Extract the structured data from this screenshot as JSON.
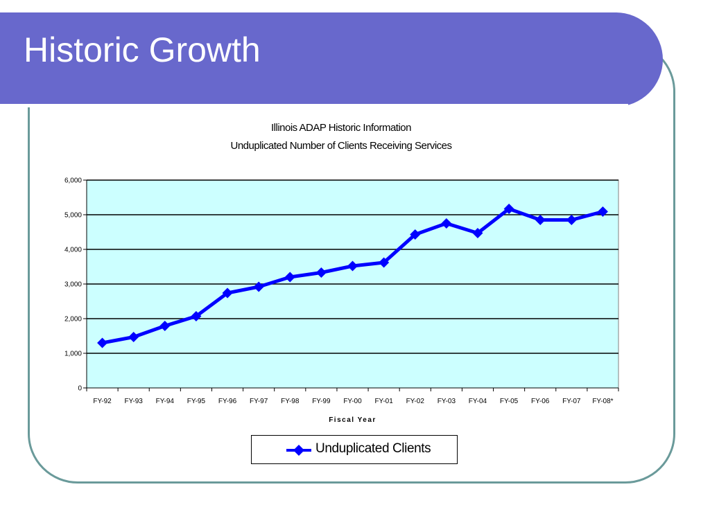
{
  "slide": {
    "title": "Historic Growth"
  },
  "chart_data": {
    "type": "line",
    "title": "Illinois ADAP Historic Information",
    "subtitle": "Unduplicated Number of Clients Receiving Services",
    "xlabel": "Fiscal Year",
    "ylabel": "",
    "ylim": [
      0,
      6000
    ],
    "yticks": [
      "0",
      "1,000",
      "2,000",
      "3,000",
      "4,000",
      "5,000",
      "6,000"
    ],
    "categories": [
      "FY-92",
      "FY-93",
      "FY-94",
      "FY-95",
      "FY-96",
      "FY-97",
      "FY-98",
      "FY-99",
      "FY-00",
      "FY-01",
      "FY-02",
      "FY-03",
      "FY-04",
      "FY-05",
      "FY-06",
      "FY-07",
      "FY-08*"
    ],
    "series": [
      {
        "name": "Unduplicated Clients",
        "values": [
          1300,
          1470,
          1790,
          2070,
          2740,
          2920,
          3200,
          3330,
          3520,
          3620,
          4430,
          4750,
          4470,
          5170,
          4850,
          4850,
          5090
        ]
      }
    ],
    "grid": true,
    "legend_position": "bottom",
    "colors": {
      "series": "#0000ff",
      "plot_background": "#ccffff",
      "gridline": "#000000"
    }
  }
}
